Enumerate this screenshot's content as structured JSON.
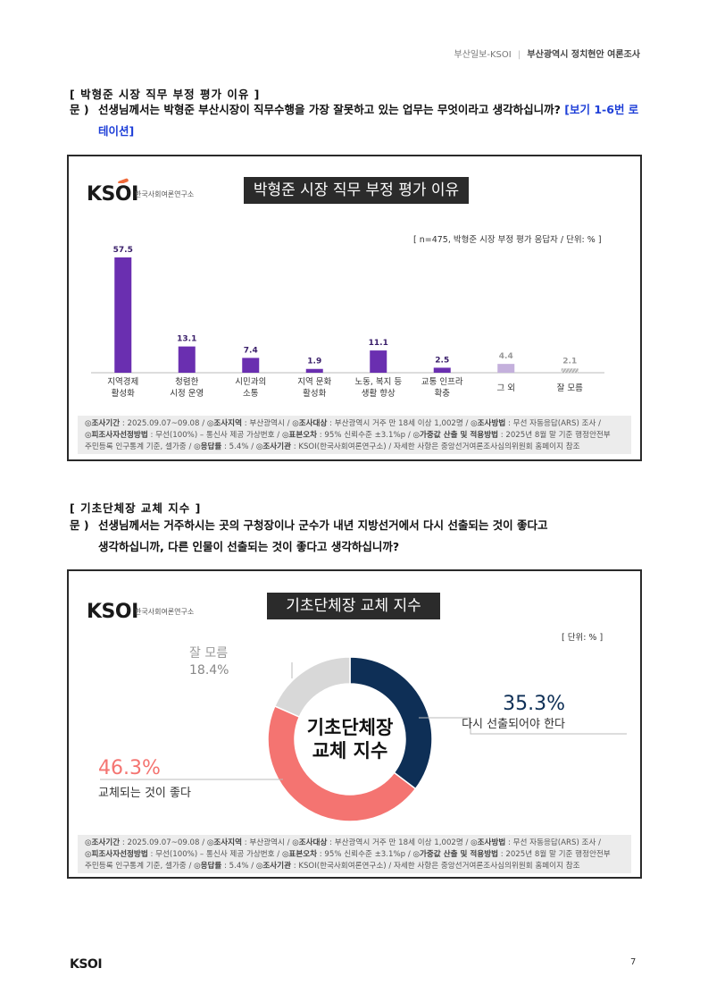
{
  "header": {
    "source": "부산일보-KSOI",
    "separator": "|",
    "title": "부산광역시 정치현안 여론조사"
  },
  "section1": {
    "title": "[ 박형준 시장 직무 부정 평가 이유 ]",
    "q_label": "문 )",
    "q_text": "선생님께서는 박형준 부산시장이 직무수행을 가장 잘못하고 있는 업무는 무엇이라고 생각하십니까?",
    "q_note_1": "[보기",
    "q_note_2": "1-6번 로테이션]"
  },
  "panel1": {
    "logo": "KSOI",
    "org": "한국사회여론연구소",
    "banner": "박형준 시장 직무 부정 평가 이유",
    "note": "[ n=475, 박형준 시장 부정 평가 응답자 / 단위: % ]"
  },
  "chart_data": [
    {
      "type": "bar",
      "title": "박형준 시장 직무 부정 평가 이유",
      "categories": [
        "지역경제\n활성화",
        "청렴한\n시정 운영",
        "시민과의\n소통",
        "지역 문화\n활성화",
        "노동, 복지 등\n생활 향상",
        "교통 인프라\n확충",
        "그 외",
        "잘 모름"
      ],
      "values": [
        57.5,
        13.1,
        7.4,
        1.9,
        11.1,
        2.5,
        4.4,
        2.1
      ],
      "colors": [
        "#6a2fb0",
        "#6a2fb0",
        "#6a2fb0",
        "#6a2fb0",
        "#6a2fb0",
        "#6a2fb0",
        "#c4b0dc",
        "#b5b5b5"
      ],
      "ylim": [
        0,
        60
      ],
      "grid": false
    },
    {
      "type": "pie",
      "title": "기초단체장 교체 지수",
      "center_label_1": "기초단체장",
      "center_label_2": "교체 지수",
      "slices": [
        {
          "label": "다시 선출되어야 한다",
          "value": 35.3,
          "display": "35.3%",
          "color": "#0e2f56"
        },
        {
          "label": "교체되는 것이 좋다",
          "value": 46.3,
          "display": "46.3%",
          "color": "#f47471"
        },
        {
          "label": "잘 모름",
          "value": 18.4,
          "display": "18.4%",
          "color": "#d8d8d8"
        }
      ]
    }
  ],
  "footer_lines": [
    [
      "◎조사기간",
      " : 2025.09.07~09.08 / ",
      "◎조사지역",
      " : 부산광역시 / ",
      "◎조사대상",
      " : 부산광역시 거주 만 18세 이상 1,002명 / ",
      "◎조사방법",
      " : 무선 자동응답(ARS) 조사 /"
    ],
    [
      "◎피조사자선정방법",
      " : 무선(100%) – 통신사 제공 가상번호 / ",
      "◎표본오차",
      " : 95% 신뢰수준 ±3.1%p / ",
      "◎가중값 산출 및 적용방법",
      " : 2025년 8월 말 기준 행정안전부"
    ],
    [
      "",
      "주민등록 인구통계 기준, 셀가중 / ",
      "◎응답률",
      " : 5.4% / ",
      "◎조사기관",
      " : KSOI(한국사회여론연구소) / 자세한 사항은 중앙선거여론조사심의위원회 홈페이지 참조"
    ]
  ],
  "section2": {
    "title": "[ 기초단체장 교체 지수 ]",
    "q_label": "문 )",
    "q_text_1": "선생님께서는 거주하시는 곳의 구청장이나 군수가 내년 지방선거에서 다시 선출되는 것이 좋다고",
    "q_text_2": "생각하십니까, 다른 인물이 선출되는 것이 좋다고 생각하십니까?"
  },
  "panel2": {
    "logo": "KSOI",
    "org": "한국사회여론연구소",
    "banner": "기초단체장 교체 지수",
    "note": "[ 단위: % ]"
  },
  "page": {
    "logo": "KSOI",
    "number": "7"
  }
}
